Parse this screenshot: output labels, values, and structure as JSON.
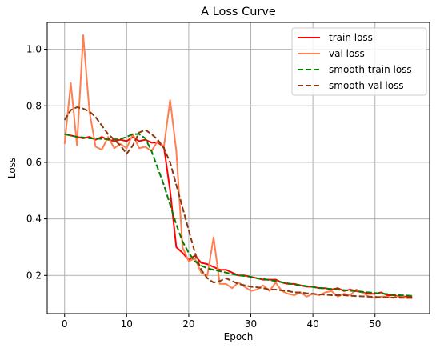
{
  "chart_data": {
    "type": "line",
    "title": "A Loss Curve",
    "xlabel": "Epoch",
    "ylabel": "Loss",
    "xlim": [
      -2.8,
      58.8
    ],
    "ylim": [
      0.065,
      1.095
    ],
    "xticks": [
      0,
      10,
      20,
      30,
      40,
      50
    ],
    "yticks": [
      0.2,
      0.4,
      0.6,
      0.8,
      1.0
    ],
    "grid": true,
    "legend_position": "top-right",
    "series": [
      {
        "name": "train loss",
        "color": "#ff0000",
        "dash": "solid",
        "x": [
          0,
          1,
          2,
          3,
          4,
          5,
          6,
          7,
          8,
          9,
          10,
          11,
          12,
          13,
          14,
          15,
          16,
          17,
          18,
          19,
          20,
          21,
          22,
          23,
          24,
          25,
          26,
          27,
          28,
          29,
          30,
          31,
          32,
          33,
          34,
          35,
          36,
          37,
          38,
          39,
          40,
          41,
          42,
          43,
          44,
          45,
          46,
          47,
          48,
          49,
          50,
          51,
          52,
          53,
          54,
          55,
          56
        ],
        "y": [
          0.7,
          0.695,
          0.69,
          0.685,
          0.69,
          0.68,
          0.69,
          0.68,
          0.675,
          0.68,
          0.675,
          0.69,
          0.675,
          0.68,
          0.67,
          0.67,
          0.655,
          0.5,
          0.3,
          0.28,
          0.255,
          0.27,
          0.245,
          0.24,
          0.23,
          0.22,
          0.22,
          0.21,
          0.2,
          0.2,
          0.195,
          0.19,
          0.185,
          0.185,
          0.185,
          0.175,
          0.17,
          0.17,
          0.165,
          0.16,
          0.16,
          0.155,
          0.155,
          0.15,
          0.155,
          0.145,
          0.15,
          0.145,
          0.14,
          0.135,
          0.135,
          0.14,
          0.13,
          0.13,
          0.125,
          0.125,
          0.125
        ]
      },
      {
        "name": "val loss",
        "color": "#ff7f50",
        "dash": "solid",
        "x": [
          0,
          1,
          2,
          3,
          4,
          5,
          6,
          7,
          8,
          9,
          10,
          11,
          12,
          13,
          14,
          15,
          16,
          17,
          18,
          19,
          20,
          21,
          22,
          23,
          24,
          25,
          26,
          27,
          28,
          29,
          30,
          31,
          32,
          33,
          34,
          35,
          36,
          37,
          38,
          39,
          40,
          41,
          42,
          43,
          44,
          45,
          46,
          47,
          48,
          49,
          50,
          51,
          52,
          53,
          54,
          55,
          56
        ],
        "y": [
          0.665,
          0.88,
          0.66,
          1.05,
          0.78,
          0.655,
          0.645,
          0.69,
          0.65,
          0.665,
          0.65,
          0.7,
          0.65,
          0.655,
          0.64,
          0.675,
          0.655,
          0.82,
          0.64,
          0.3,
          0.25,
          0.26,
          0.21,
          0.2,
          0.335,
          0.17,
          0.17,
          0.155,
          0.175,
          0.16,
          0.145,
          0.15,
          0.165,
          0.145,
          0.175,
          0.145,
          0.135,
          0.13,
          0.14,
          0.125,
          0.135,
          0.13,
          0.14,
          0.145,
          0.125,
          0.135,
          0.13,
          0.15,
          0.14,
          0.125,
          0.12,
          0.125,
          0.125,
          0.12,
          0.13,
          0.12,
          0.12
        ]
      },
      {
        "name": "smooth train loss",
        "color": "#008000",
        "dash": "dashed",
        "x": [
          0,
          1,
          2,
          3,
          4,
          5,
          6,
          7,
          8,
          9,
          10,
          11,
          12,
          13,
          14,
          15,
          16,
          17,
          18,
          19,
          20,
          21,
          22,
          23,
          24,
          25,
          26,
          27,
          28,
          29,
          30,
          31,
          32,
          33,
          34,
          35,
          36,
          37,
          38,
          39,
          40,
          41,
          42,
          43,
          44,
          45,
          46,
          47,
          48,
          49,
          50,
          51,
          52,
          53,
          54,
          55,
          56
        ],
        "y": [
          0.7,
          0.695,
          0.69,
          0.688,
          0.685,
          0.684,
          0.683,
          0.682,
          0.681,
          0.682,
          0.69,
          0.7,
          0.7,
          0.685,
          0.64,
          0.58,
          0.52,
          0.45,
          0.38,
          0.32,
          0.28,
          0.25,
          0.235,
          0.225,
          0.22,
          0.215,
          0.21,
          0.205,
          0.2,
          0.198,
          0.195,
          0.19,
          0.187,
          0.184,
          0.18,
          0.176,
          0.172,
          0.168,
          0.165,
          0.162,
          0.159,
          0.156,
          0.154,
          0.152,
          0.15,
          0.148,
          0.146,
          0.144,
          0.142,
          0.14,
          0.138,
          0.136,
          0.134,
          0.132,
          0.13,
          0.129,
          0.128
        ]
      },
      {
        "name": "smooth val loss",
        "color": "#8b3a0f",
        "dash": "dashed",
        "x": [
          0,
          1,
          2,
          3,
          4,
          5,
          6,
          7,
          8,
          9,
          10,
          11,
          12,
          13,
          14,
          15,
          16,
          17,
          18,
          19,
          20,
          21,
          22,
          23,
          24,
          25,
          26,
          27,
          28,
          29,
          30,
          31,
          32,
          33,
          34,
          35,
          36,
          37,
          38,
          39,
          40,
          41,
          42,
          43,
          44,
          45,
          46,
          47,
          48,
          49,
          50,
          51,
          52,
          53,
          54,
          55,
          56
        ],
        "y": [
          0.75,
          0.785,
          0.795,
          0.79,
          0.78,
          0.76,
          0.73,
          0.7,
          0.68,
          0.66,
          0.63,
          0.66,
          0.705,
          0.715,
          0.7,
          0.68,
          0.65,
          0.6,
          0.52,
          0.44,
          0.36,
          0.28,
          0.22,
          0.19,
          0.175,
          0.18,
          0.19,
          0.18,
          0.17,
          0.165,
          0.16,
          0.158,
          0.155,
          0.15,
          0.15,
          0.147,
          0.145,
          0.14,
          0.14,
          0.137,
          0.135,
          0.133,
          0.132,
          0.13,
          0.13,
          0.13,
          0.128,
          0.127,
          0.126,
          0.125,
          0.124,
          0.123,
          0.122,
          0.122,
          0.121,
          0.121,
          0.12
        ]
      }
    ]
  }
}
